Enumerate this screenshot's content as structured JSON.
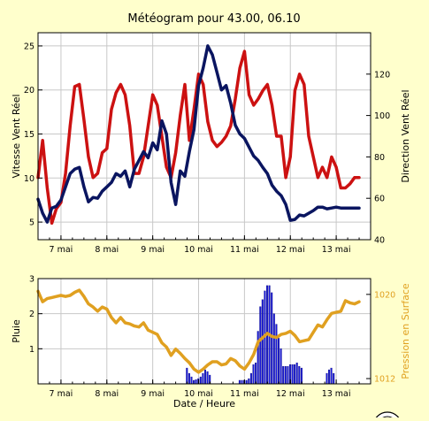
{
  "title": "Météogram pour 43.00, 06.10",
  "colors": {
    "background": "#ffffcc",
    "plot_bg": "#ffffff",
    "grid": "#c8c8c8",
    "wind_speed": "#0a1560",
    "wind_direction": "#cc1111",
    "rain": "#1a1ae0",
    "pressure": "#e0a020"
  },
  "chart_data": [
    {
      "type": "line",
      "ylabel": "Vitesse Vent Réel",
      "y2label": "Direction Vent Réel",
      "x_tick_labels": [
        "7 mai",
        "8 mai",
        "9 mai",
        "10 mai",
        "11 mai",
        "12 mai",
        "13 mai"
      ],
      "x_tick_days": [
        7,
        8,
        9,
        10,
        11,
        12,
        13
      ],
      "xlim_days": [
        6.5,
        13.75
      ],
      "ylim": [
        3,
        26.5
      ],
      "y_ticks": [
        5,
        10,
        15,
        20,
        25
      ],
      "y2lim": [
        40,
        140
      ],
      "y2_ticks": [
        40,
        60,
        80,
        100,
        120
      ],
      "grid": true,
      "series": [
        {
          "axis": "left",
          "x": [
            6.5,
            6.6,
            6.7,
            6.8,
            6.9,
            7.0,
            7.1,
            7.2,
            7.3,
            7.4,
            7.5,
            7.6,
            7.7,
            7.8,
            7.9,
            8.0,
            8.1,
            8.2,
            8.3,
            8.4,
            8.5,
            8.6,
            8.7,
            8.8,
            8.9,
            9.0,
            9.1,
            9.2,
            9.3,
            9.4,
            9.5,
            9.6,
            9.7,
            9.8,
            9.9,
            10.0,
            10.1,
            10.2,
            10.3,
            10.4,
            10.5,
            10.6,
            10.7,
            10.8,
            10.9,
            11.0,
            11.1,
            11.2,
            11.3,
            11.4,
            11.5,
            11.6,
            11.7,
            11.8,
            11.9,
            12.0,
            12.1,
            12.2,
            12.3,
            12.4,
            12.5,
            12.6,
            12.7,
            12.8,
            12.9,
            13.0,
            13.1,
            13.2,
            13.3,
            13.4,
            13.5
          ],
          "values": [
            7.6,
            6.0,
            5.0,
            6.6,
            6.8,
            7.5,
            9.0,
            10.5,
            11.0,
            11.2,
            9.0,
            7.3,
            7.8,
            7.7,
            8.5,
            9.0,
            9.5,
            10.5,
            10.2,
            10.8,
            9.0,
            11.0,
            12.0,
            13.0,
            12.3,
            14.0,
            13.2,
            16.5,
            15.0,
            9.5,
            7.0,
            10.8,
            10.2,
            13.0,
            15.5,
            20.5,
            22.5,
            25.0,
            24.0,
            22.0,
            20.0,
            20.5,
            18.5,
            16.0,
            15.0,
            14.5,
            13.5,
            12.5,
            12.0,
            11.2,
            10.5,
            9.2,
            8.5,
            8.0,
            7.0,
            5.2,
            5.3,
            5.8,
            5.7,
            6.0,
            6.3,
            6.7,
            6.7,
            6.5,
            6.6,
            6.7,
            6.6,
            6.6,
            6.6,
            6.6,
            6.6
          ]
        },
        {
          "axis": "right",
          "x": [
            6.5,
            6.6,
            6.7,
            6.8,
            6.9,
            7.0,
            7.1,
            7.2,
            7.3,
            7.4,
            7.5,
            7.6,
            7.7,
            7.8,
            7.9,
            8.0,
            8.1,
            8.2,
            8.3,
            8.4,
            8.5,
            8.6,
            8.7,
            8.8,
            8.9,
            9.0,
            9.1,
            9.2,
            9.3,
            9.4,
            9.5,
            9.6,
            9.7,
            9.8,
            9.9,
            10.0,
            10.1,
            10.2,
            10.3,
            10.4,
            10.5,
            10.6,
            10.7,
            10.8,
            10.9,
            11.0,
            11.1,
            11.2,
            11.3,
            11.4,
            11.5,
            11.6,
            11.7,
            11.8,
            11.9,
            12.0,
            12.1,
            12.2,
            12.3,
            12.4,
            12.5,
            12.6,
            12.7,
            12.8,
            12.9,
            13.0,
            13.1,
            13.2,
            13.3,
            13.4,
            13.5
          ],
          "values": [
            70,
            88,
            65,
            48,
            55,
            58,
            72,
            95,
            114,
            115,
            98,
            80,
            70,
            72,
            82,
            84,
            103,
            111,
            115,
            110,
            95,
            72,
            72,
            80,
            95,
            110,
            105,
            90,
            75,
            70,
            82,
            100,
            115,
            88,
            103,
            120,
            115,
            97,
            88,
            85,
            87,
            90,
            95,
            108,
            123,
            131,
            110,
            105,
            108,
            112,
            115,
            105,
            90,
            90,
            70,
            80,
            112,
            120,
            115,
            90,
            80,
            70,
            75,
            70,
            80,
            75,
            65,
            65,
            67,
            70,
            70
          ]
        }
      ]
    },
    {
      "type": "bar",
      "xlabel": "Date / Heure",
      "ylabel": "Pluie",
      "y2label": "Pression en Surface",
      "x_tick_labels": [
        "7 mai",
        "8 mai",
        "9 mai",
        "10 mai",
        "11 mai",
        "12 mai",
        "13 mai"
      ],
      "x_tick_days": [
        7,
        8,
        9,
        10,
        11,
        12,
        13
      ],
      "xlim_days": [
        6.5,
        13.75
      ],
      "ylim": [
        0,
        3
      ],
      "y_ticks": [
        1,
        2,
        3
      ],
      "y2lim": [
        1011.5,
        1021.5
      ],
      "y2_ticks": [
        1012,
        1020
      ],
      "grid": true,
      "series": [
        {
          "type": "bar",
          "axis": "left",
          "bar_width_days": 0.0416,
          "x": [
            9.75,
            9.8,
            9.85,
            9.9,
            9.95,
            10.0,
            10.05,
            10.1,
            10.15,
            10.2,
            10.25,
            10.9,
            10.95,
            11.0,
            11.05,
            11.1,
            11.15,
            11.2,
            11.25,
            11.3,
            11.35,
            11.4,
            11.45,
            11.5,
            11.55,
            11.6,
            11.65,
            11.7,
            11.75,
            11.8,
            11.85,
            11.9,
            11.95,
            12.0,
            12.05,
            12.1,
            12.15,
            12.2,
            12.25,
            12.8,
            12.85,
            12.9,
            12.95
          ],
          "values": [
            0.45,
            0.3,
            0.2,
            0.1,
            0.12,
            0.15,
            0.2,
            0.3,
            0.4,
            0.35,
            0.25,
            0.1,
            0.1,
            0.1,
            0.1,
            0.15,
            0.3,
            0.55,
            0.6,
            1.5,
            2.2,
            2.4,
            2.65,
            2.8,
            2.8,
            2.6,
            2.0,
            1.7,
            1.3,
            1.0,
            0.5,
            0.5,
            0.5,
            0.55,
            0.55,
            0.55,
            0.6,
            0.5,
            0.45,
            0.3,
            0.4,
            0.45,
            0.3
          ]
        },
        {
          "type": "line",
          "axis": "right",
          "x": [
            6.5,
            6.6,
            6.7,
            6.8,
            6.9,
            7.0,
            7.1,
            7.2,
            7.3,
            7.4,
            7.5,
            7.6,
            7.7,
            7.8,
            7.9,
            8.0,
            8.1,
            8.2,
            8.3,
            8.4,
            8.5,
            8.6,
            8.7,
            8.8,
            8.9,
            9.0,
            9.1,
            9.2,
            9.3,
            9.4,
            9.5,
            9.6,
            9.7,
            9.8,
            9.9,
            10.0,
            10.1,
            10.2,
            10.3,
            10.4,
            10.5,
            10.6,
            10.7,
            10.8,
            10.9,
            11.0,
            11.1,
            11.2,
            11.3,
            11.4,
            11.5,
            11.6,
            11.7,
            11.8,
            11.9,
            12.0,
            12.1,
            12.2,
            12.3,
            12.4,
            12.5,
            12.6,
            12.7,
            12.8,
            12.9,
            13.0,
            13.1,
            13.2,
            13.3,
            13.4,
            13.5
          ],
          "values": [
            1020.3,
            1019.3,
            1019.6,
            1019.7,
            1019.8,
            1019.9,
            1019.8,
            1019.9,
            1020.2,
            1020.4,
            1019.8,
            1019.1,
            1018.8,
            1018.4,
            1018.8,
            1018.6,
            1017.8,
            1017.3,
            1017.8,
            1017.3,
            1017.2,
            1017.0,
            1016.9,
            1017.3,
            1016.6,
            1016.4,
            1016.2,
            1015.4,
            1015.0,
            1014.2,
            1014.8,
            1014.4,
            1013.9,
            1013.5,
            1012.9,
            1012.6,
            1012.9,
            1013.3,
            1013.6,
            1013.6,
            1013.3,
            1013.4,
            1013.9,
            1013.7,
            1013.2,
            1012.9,
            1013.5,
            1014.3,
            1015.5,
            1015.9,
            1016.3,
            1016.0,
            1015.9,
            1016.2,
            1016.3,
            1016.5,
            1016.1,
            1015.5,
            1015.6,
            1015.7,
            1016.4,
            1017.1,
            1016.9,
            1017.6,
            1018.2,
            1018.3,
            1018.4,
            1019.4,
            1019.2,
            1019.1,
            1019.3
          ]
        }
      ]
    }
  ]
}
